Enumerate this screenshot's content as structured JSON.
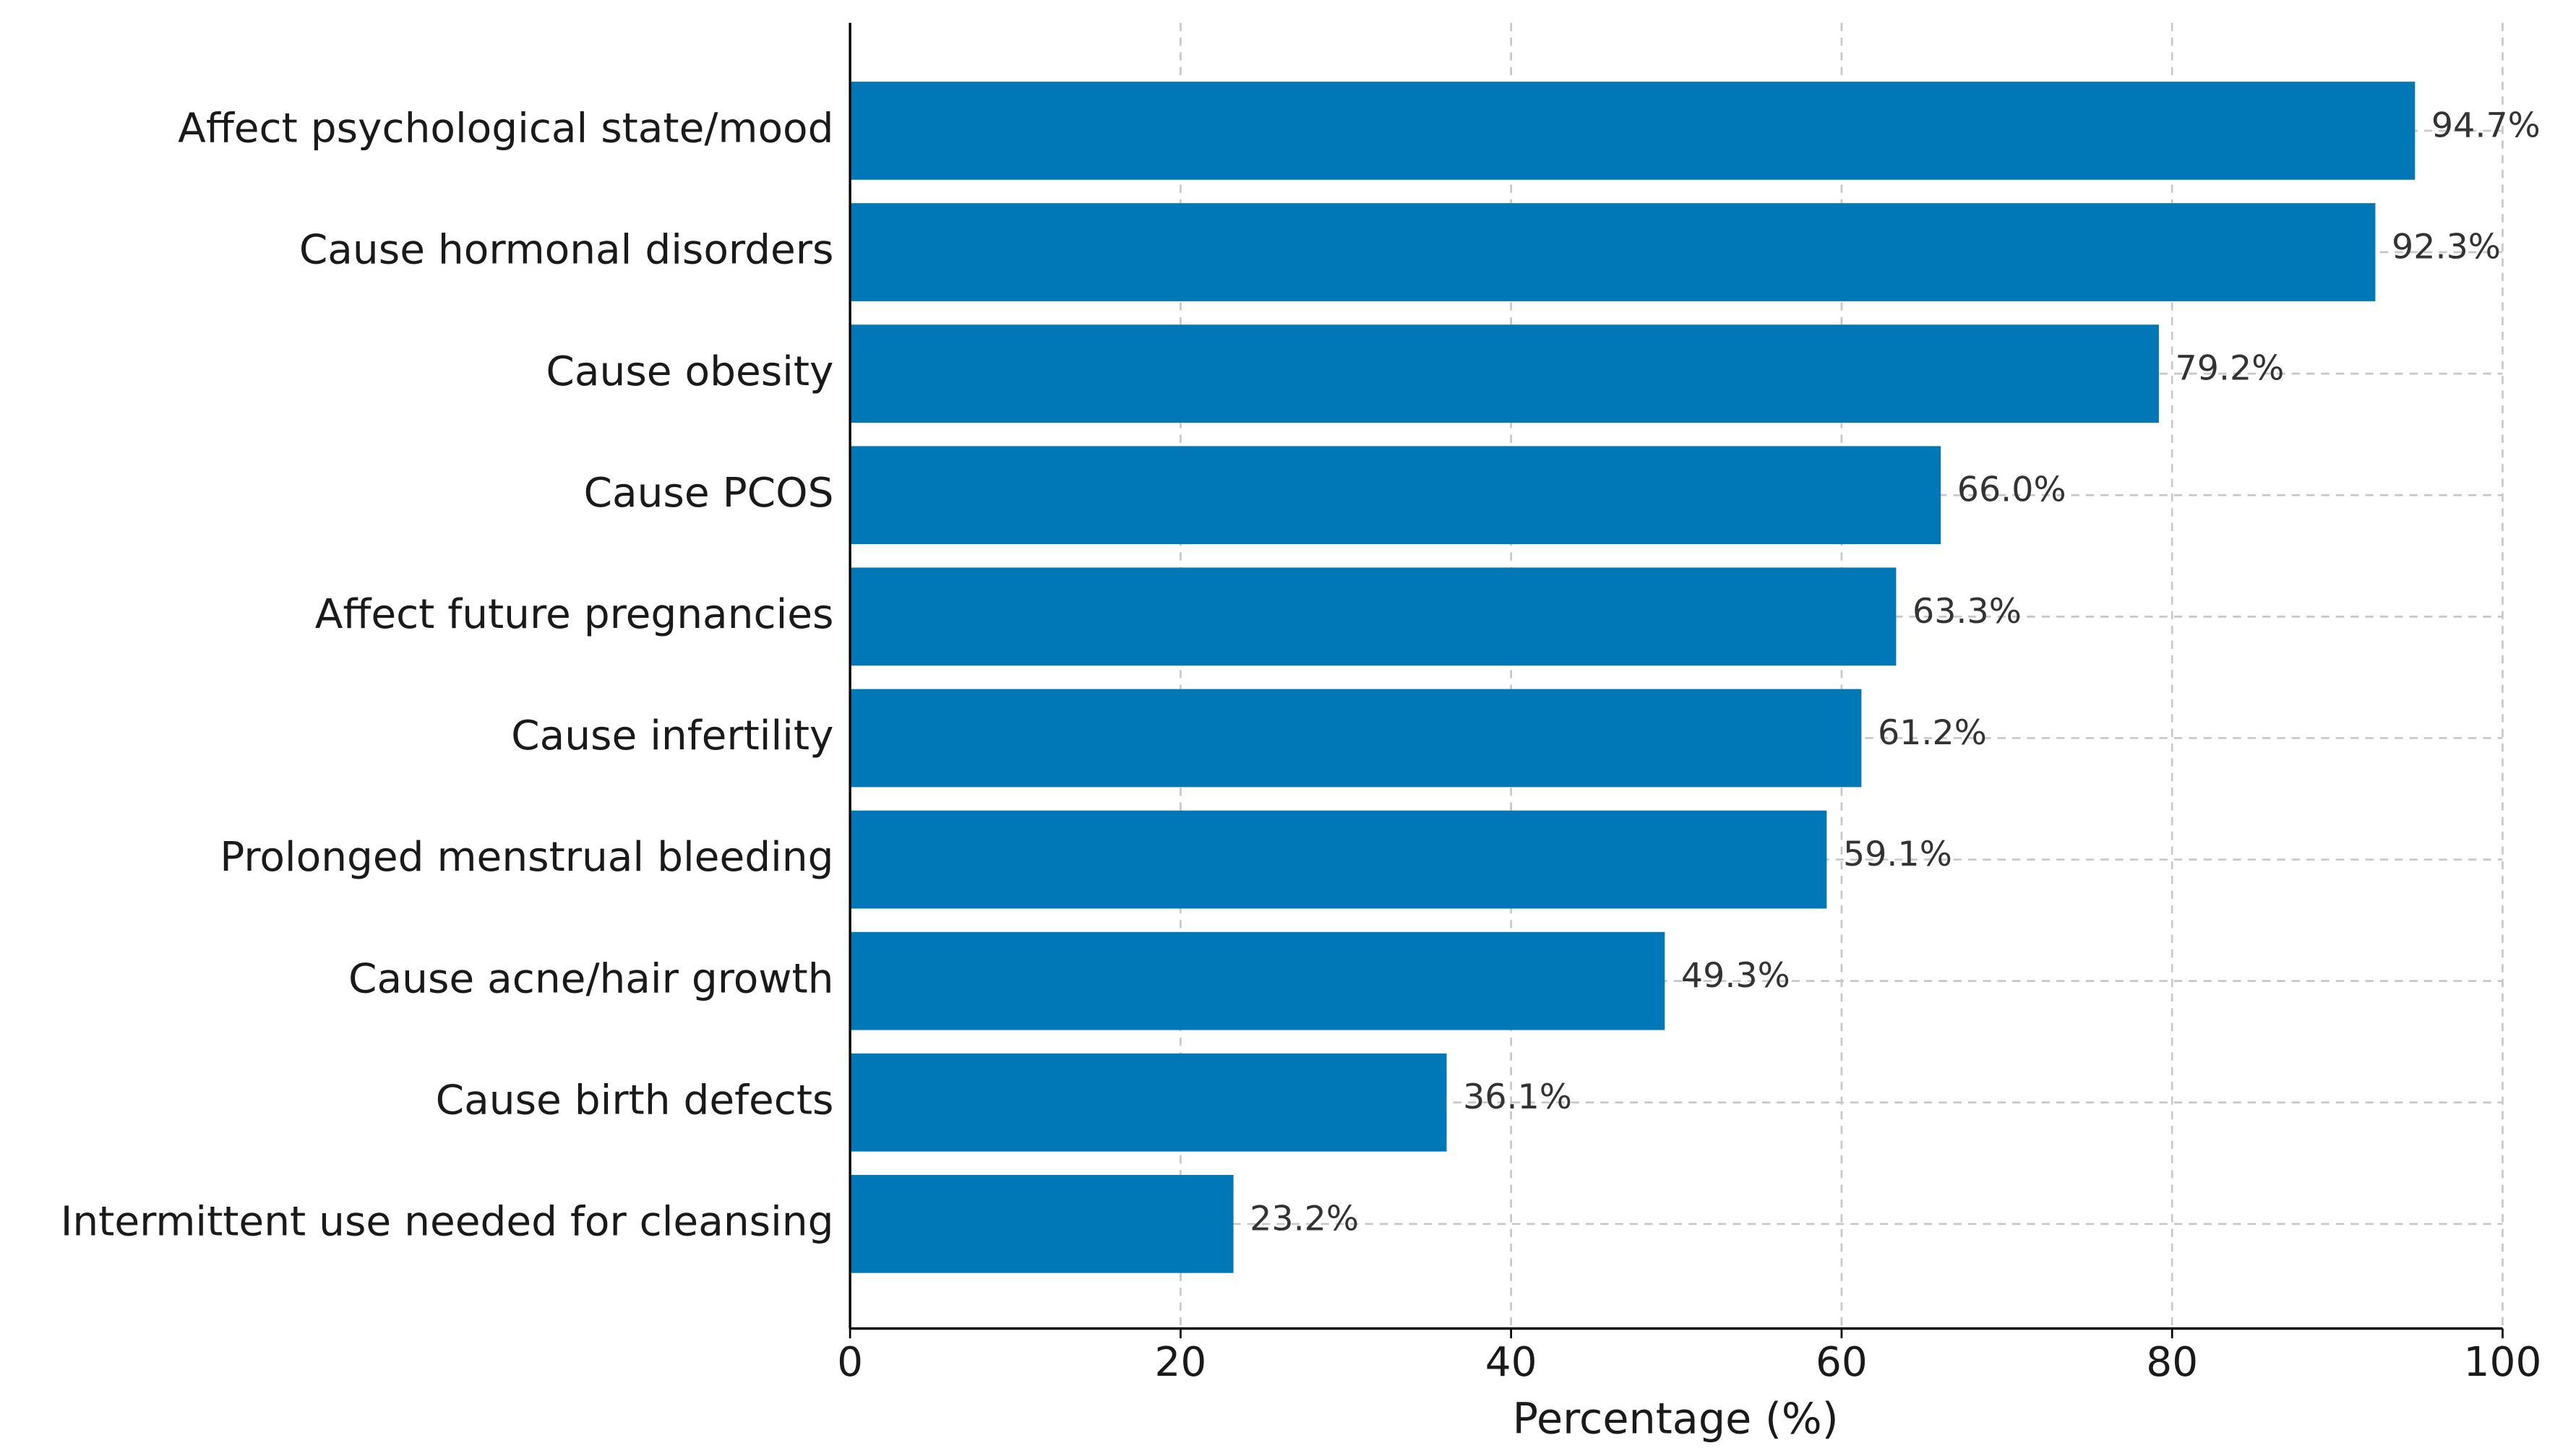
{
  "chart_data": {
    "type": "barh",
    "xlabel": "Percentage (%)",
    "categories": [
      "Affect psychological state/mood",
      "Cause hormonal disorders",
      "Cause obesity",
      "Cause PCOS",
      "Affect future pregnancies",
      "Cause infertility",
      "Prolonged menstrual bleeding",
      "Cause acne/hair growth",
      "Cause birth defects",
      "Intermittent use needed for cleansing"
    ],
    "values": [
      94.7,
      92.3,
      79.2,
      66.0,
      63.3,
      61.2,
      59.1,
      49.3,
      36.1,
      23.2
    ],
    "value_labels": [
      "94.7%",
      "92.3%",
      "79.2%",
      "66.0%",
      "63.3%",
      "61.2%",
      "59.1%",
      "49.3%",
      "36.1%",
      "23.2%"
    ],
    "color": "#0077b6",
    "xlim": [
      0,
      100
    ],
    "xticks": [
      0,
      20,
      40,
      60,
      80,
      100
    ],
    "grid": true
  }
}
